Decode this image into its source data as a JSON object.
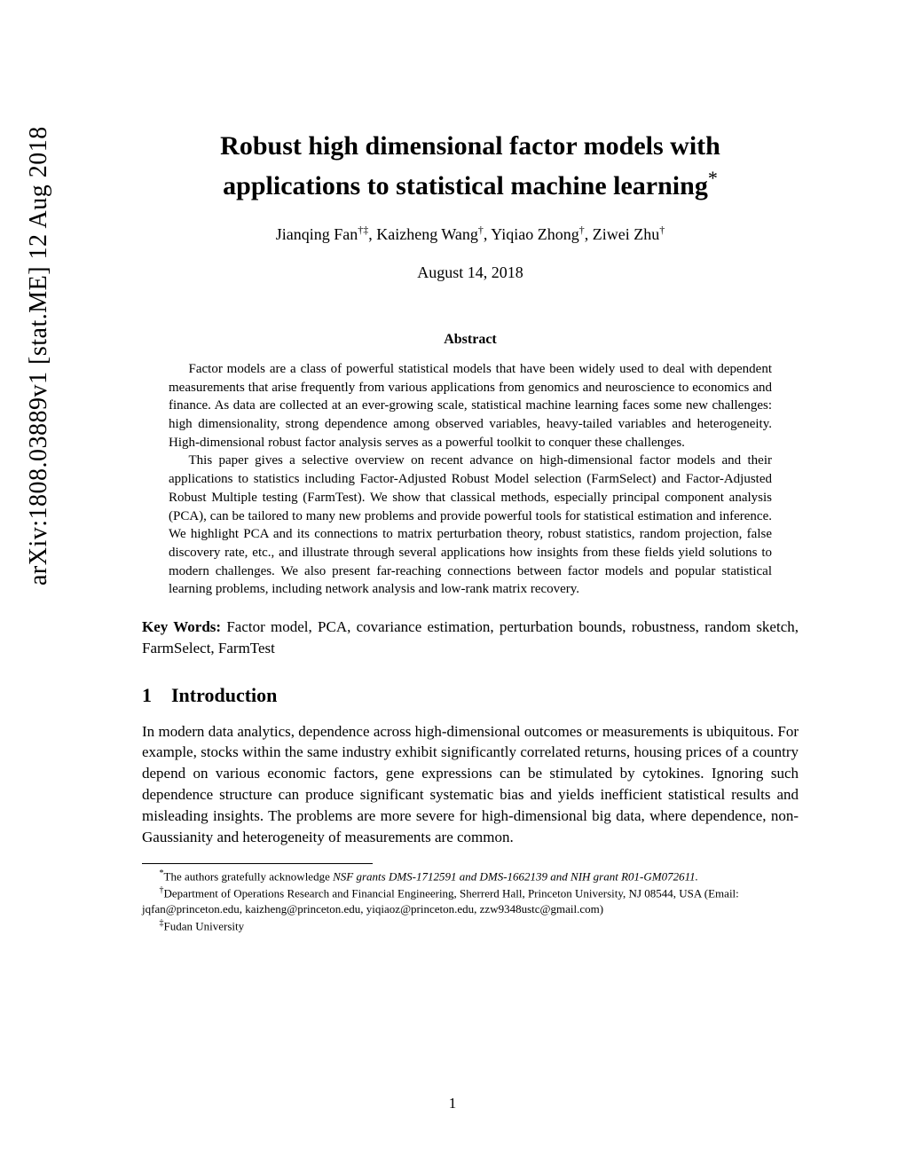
{
  "arxiv_stamp": "arXiv:1808.03889v1  [stat.ME]  12 Aug 2018",
  "title_line1": "Robust high dimensional factor models with",
  "title_line2": "applications to statistical machine learning",
  "title_marker": "*",
  "authors": {
    "a1": "Jianqing Fan",
    "a1_sup": "†‡",
    "a2": "Kaizheng Wang",
    "a2_sup": "†",
    "a3": "Yiqiao Zhong",
    "a3_sup": "†",
    "a4": "Ziwei Zhu",
    "a4_sup": "†"
  },
  "date": "August 14, 2018",
  "abstract_heading": "Abstract",
  "abstract_p1": "Factor models are a class of powerful statistical models that have been widely used to deal with dependent measurements that arise frequently from various applications from genomics and neuroscience to economics and finance. As data are collected at an ever-growing scale, statistical machine learning faces some new challenges: high dimensionality, strong dependence among observed variables, heavy-tailed variables and heterogeneity. High-dimensional robust factor analysis serves as a powerful toolkit to conquer these challenges.",
  "abstract_p2": "This paper gives a selective overview on recent advance on high-dimensional factor models and their applications to statistics including Factor-Adjusted Robust Model selection (FarmSelect) and Factor-Adjusted Robust Multiple testing (FarmTest). We show that classical methods, especially principal component analysis (PCA), can be tailored to many new problems and provide powerful tools for statistical estimation and inference. We highlight PCA and its connections to matrix perturbation theory, robust statistics, random projection, false discovery rate, etc., and illustrate through several applications how insights from these fields yield solutions to modern challenges. We also present far-reaching connections between factor models and popular statistical learning problems, including network analysis and low-rank matrix recovery.",
  "keywords_label": "Key Words:",
  "keywords_text": " Factor model, PCA, covariance estimation, perturbation bounds, robustness, random sketch, FarmSelect, FarmTest",
  "section1_num": "1",
  "section1_title": "Introduction",
  "intro_p1": "In modern data analytics, dependence across high-dimensional outcomes or measurements is ubiquitous. For example, stocks within the same industry exhibit significantly correlated returns, housing prices of a country depend on various economic factors, gene expressions can be stimulated by cytokines. Ignoring such dependence structure can produce significant systematic bias and yields inefficient statistical results and misleading insights. The problems are more severe for high-dimensional big data, where dependence, non-Gaussianity and heterogeneity of measurements are common.",
  "footnotes": {
    "f1_sym": "*",
    "f1_text_a": "The authors gratefully acknowledge ",
    "f1_text_em": "NSF grants DMS-1712591 and DMS-1662139 and NIH grant R01-GM072611.",
    "f2_sym": "†",
    "f2_text": "Department of Operations Research and Financial Engineering, Sherrerd Hall, Princeton University, NJ 08544, USA (Email: jqfan@princeton.edu, kaizheng@princeton.edu, yiqiaoz@princeton.edu, zzw9348ustc@gmail.com)",
    "f3_sym": "‡",
    "f3_text": "Fudan University"
  },
  "page_number": "1"
}
